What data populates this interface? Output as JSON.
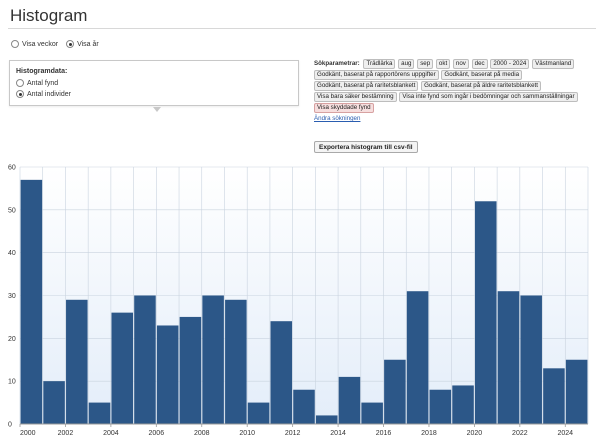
{
  "page": {
    "title": "Histogram"
  },
  "period": {
    "options": [
      {
        "label": "Visa veckor",
        "checked": false
      },
      {
        "label": "Visa år",
        "checked": true
      }
    ]
  },
  "histogram_data": {
    "title": "Histogramdata:",
    "options": [
      {
        "label": "Antal fynd",
        "checked": false
      },
      {
        "label": "Antal individer",
        "checked": true
      }
    ]
  },
  "search_params": {
    "label": "Sökparametrar:",
    "chips": [
      "Trädlärka",
      "aug",
      "sep",
      "okt",
      "nov",
      "dec",
      "2000 - 2024",
      "Västmanland",
      "Godkänt, baserat på rapportörens uppgifter",
      "Godkänt, baserat på media",
      "Godkänt, baserat på raritetsblankett",
      "Godkänt, baserat på äldre raritetsblankett",
      "Visa bara säker bestämning",
      "Visa inte fynd som ingår i bedömningar och sammanställningar"
    ],
    "protected_chip": "Visa skyddade fynd",
    "change_link": "Ändra sökningen"
  },
  "export_button": "Exportera histogram till csv-fil",
  "colors": {
    "bar": "#2c5788",
    "plot_bg_top": "#ffffff",
    "plot_bg_bottom": "#e3edf9",
    "grid": "#c9d3df"
  },
  "chart_data": {
    "type": "bar",
    "categories": [
      "2000",
      "2001",
      "2002",
      "2003",
      "2004",
      "2005",
      "2006",
      "2007",
      "2008",
      "2009",
      "2010",
      "2011",
      "2012",
      "2013",
      "2014",
      "2015",
      "2016",
      "2017",
      "2018",
      "2019",
      "2020",
      "2021",
      "2022",
      "2023",
      "2024"
    ],
    "values": [
      57,
      10,
      29,
      5,
      26,
      30,
      23,
      25,
      30,
      29,
      5,
      24,
      8,
      2,
      11,
      5,
      15,
      31,
      8,
      9,
      52,
      31,
      30,
      13,
      15
    ],
    "x_tick_labels": [
      "2000",
      "2002",
      "2004",
      "2006",
      "2008",
      "2010",
      "2012",
      "2014",
      "2016",
      "2018",
      "2020",
      "2022",
      "2024"
    ],
    "y_ticks": [
      0,
      10,
      20,
      30,
      40,
      50,
      60
    ],
    "ylim": [
      0,
      60
    ],
    "grid": true,
    "title": "",
    "xlabel": "",
    "ylabel": ""
  }
}
